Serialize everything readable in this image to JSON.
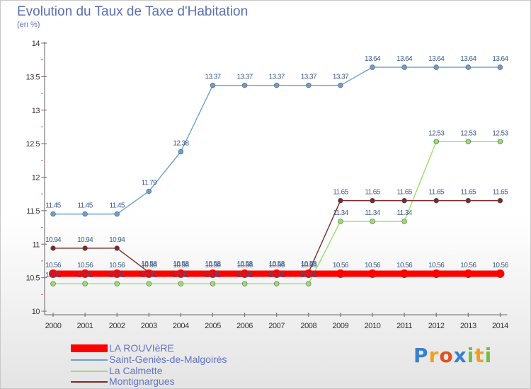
{
  "chart_data": {
    "type": "line",
    "title": "Evolution du Taux de Taxe d'Habitation",
    "subtitle": "(en %)",
    "x": [
      2000,
      2001,
      2002,
      2003,
      2004,
      2005,
      2006,
      2007,
      2008,
      2009,
      2010,
      2011,
      2012,
      2013,
      2014
    ],
    "ylim": [
      10,
      14
    ],
    "yticks": [
      "10",
      "10.5",
      "11",
      "11.5",
      "12",
      "12.5",
      "13",
      "13.5",
      "14"
    ],
    "grid": false,
    "legend_position": "bottom-left",
    "series": [
      {
        "name": "LA ROUVIèRE",
        "color": "#ff0000",
        "values": [
          10.56,
          10.56,
          10.56,
          10.56,
          10.56,
          10.56,
          10.56,
          10.56,
          10.56,
          10.56,
          10.56,
          10.56,
          10.56,
          10.56,
          10.56
        ],
        "labels": [
          "10.56",
          "10.56",
          "10.56",
          "10.56",
          "10.56",
          "10.56",
          "10.56",
          "10.56",
          "10.56",
          "10.56",
          "10.56",
          "10.56",
          "10.56",
          "10.56",
          "10.56"
        ]
      },
      {
        "name": "Saint-Geniès-de-Malgoirès",
        "color": "#6d9fd0",
        "values": [
          11.45,
          11.45,
          11.45,
          11.79,
          12.38,
          13.37,
          13.37,
          13.37,
          13.37,
          13.37,
          13.64,
          13.64,
          13.64,
          13.64,
          13.64
        ],
        "labels": [
          "11.45",
          "11.45",
          "11.45",
          "11.79",
          "12.38",
          "13.37",
          "13.37",
          "13.37",
          "13.37",
          "13.37",
          "13.64",
          "13.64",
          "13.64",
          "13.64",
          "13.64"
        ]
      },
      {
        "name": "La Calmette",
        "color": "#98e06a",
        "values": [
          10.41,
          10.41,
          10.41,
          10.41,
          10.41,
          10.41,
          10.41,
          10.41,
          10.41,
          11.34,
          11.34,
          11.34,
          12.53,
          12.53,
          12.53
        ],
        "labels": [
          "10.41",
          "10.41",
          "10.41",
          "10.41",
          "10.41",
          "10.41",
          "10.41",
          "10.41",
          "10.41",
          "11.34",
          "11.34",
          "11.34",
          "12.53",
          "12.53",
          "12.53"
        ]
      },
      {
        "name": "Montignargues",
        "color": "#7a2b2b",
        "values": [
          10.94,
          10.94,
          10.94,
          10.58,
          10.58,
          10.58,
          10.58,
          10.58,
          10.58,
          11.65,
          11.65,
          11.65,
          11.65,
          11.65,
          11.65
        ],
        "labels": [
          "10.94",
          "10.94",
          "10.94",
          "10.58",
          "10.58",
          "10.58",
          "10.58",
          "10.58",
          "10.58",
          "11.65",
          "11.65",
          "11.65",
          "11.65",
          "11.65",
          "11.65"
        ]
      }
    ]
  },
  "logo": {
    "letters": [
      {
        "ch": "P",
        "color": "#3a7fd0"
      },
      {
        "ch": "r",
        "color": "#f0a020"
      },
      {
        "ch": "o",
        "color": "#e05020"
      },
      {
        "ch": "x",
        "color": "#3a7fd0"
      },
      {
        "ch": "i",
        "color": "#70c040"
      },
      {
        "ch": "t",
        "color": "#f0a020"
      },
      {
        "ch": "i",
        "color": "#70c040"
      }
    ]
  },
  "colors": {
    "axis": "#666666",
    "tick_text": "#333333",
    "value_text": "#3c5a8c",
    "title": "#5b6fb5"
  }
}
